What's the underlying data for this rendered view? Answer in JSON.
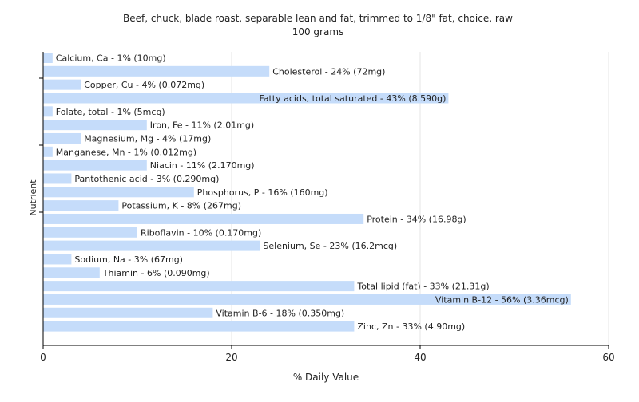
{
  "chart_data": {
    "type": "bar",
    "orientation": "horizontal",
    "title": "Beef, chuck, blade roast, separable lean and fat, trimmed to 1/8\" fat, choice, raw",
    "subtitle": "100 grams",
    "xlabel": "% Daily Value",
    "ylabel": "Nutrient",
    "xlim": [
      0,
      60
    ],
    "xticks": [
      "0",
      "20",
      "40",
      "60"
    ],
    "grid": true,
    "legend": "none",
    "colors": {
      "bar": "#c5dcfa",
      "grid": "#e6e6e6",
      "axis": "#000000",
      "text": "#222222"
    },
    "categories": [
      "Calcium, Ca - 1% (10mg)",
      "Cholesterol - 24% (72mg)",
      "Copper, Cu - 4% (0.072mg)",
      "Fatty acids, total saturated - 43% (8.590g)",
      "Folate, total - 1% (5mcg)",
      "Iron, Fe - 11% (2.01mg)",
      "Magnesium, Mg - 4% (17mg)",
      "Manganese, Mn - 1% (0.012mg)",
      "Niacin - 11% (2.170mg)",
      "Pantothenic acid - 3% (0.290mg)",
      "Phosphorus, P - 16% (160mg)",
      "Potassium, K - 8% (267mg)",
      "Protein - 34% (16.98g)",
      "Riboflavin - 10% (0.170mg)",
      "Selenium, Se - 23% (16.2mcg)",
      "Sodium, Na - 3% (67mg)",
      "Thiamin - 6% (0.090mg)",
      "Total lipid (fat) - 33% (21.31g)",
      "Vitamin B-12 - 56% (3.36mcg)",
      "Vitamin B-6 - 18% (0.350mg)",
      "Zinc, Zn - 33% (4.90mg)"
    ],
    "values": [
      1,
      24,
      4,
      43,
      1,
      11,
      4,
      1,
      11,
      3,
      16,
      8,
      34,
      10,
      23,
      3,
      6,
      33,
      56,
      18,
      33
    ]
  }
}
